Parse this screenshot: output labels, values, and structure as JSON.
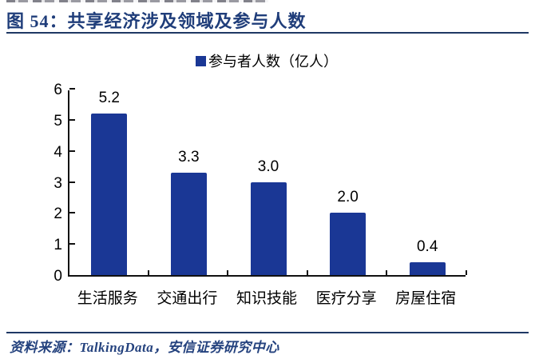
{
  "header": {
    "title": "图 54：共享经济涉及领域及参与人数"
  },
  "chart_data": {
    "type": "bar",
    "title": "共享经济涉及领域及参与人数",
    "legend": "参与者人数（亿人）",
    "legend_position": "top-center",
    "categories": [
      "生活服务",
      "交通出行",
      "知识技能",
      "医疗分享",
      "房屋住宿"
    ],
    "values": [
      5.2,
      3.3,
      3.0,
      2.0,
      0.4
    ],
    "value_labels": [
      "5.2",
      "3.3",
      "3.0",
      "2.0",
      "0.4"
    ],
    "xlabel": "",
    "ylabel": "",
    "ylim": [
      0,
      6
    ],
    "yticks": [
      0,
      1,
      2,
      3,
      4,
      5,
      6
    ],
    "grid": false,
    "bar_color": "#1A3795"
  },
  "footer": {
    "source": "资料来源：TalkingData，安信证券研究中心"
  },
  "colors": {
    "bar": "#1A3795",
    "accent_navy": "#1F3864",
    "title_navy": "#1F3D7A",
    "text": "#000000"
  }
}
